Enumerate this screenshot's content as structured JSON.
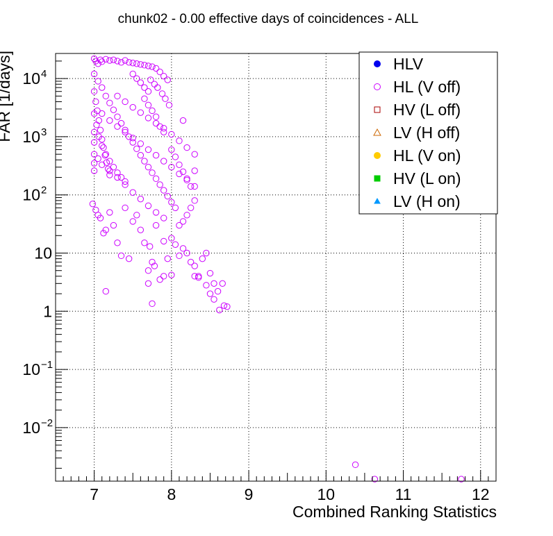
{
  "chart_data": {
    "type": "scatter",
    "title": "chunk02 - 0.00 effective days of coincidences - ALL",
    "xlabel": "Combined Ranking Statistics",
    "ylabel": "FAR [1/days]",
    "xlim": [
      6.5,
      12.2
    ],
    "ylim": [
      0.0012,
      27000
    ],
    "yscale": "log",
    "grid": true,
    "legend_position": "top-right",
    "x_ticks": [
      {
        "value": 7,
        "label": "7"
      },
      {
        "value": 8,
        "label": "8"
      },
      {
        "value": 9,
        "label": "9"
      },
      {
        "value": 10,
        "label": "10"
      },
      {
        "value": 11,
        "label": "11"
      },
      {
        "value": 12,
        "label": "12"
      }
    ],
    "y_ticks": [
      {
        "value": 0.01,
        "label": "10",
        "exp": "−2"
      },
      {
        "value": 0.1,
        "label": "10",
        "exp": "−1"
      },
      {
        "value": 1,
        "label": "1",
        "exp": ""
      },
      {
        "value": 10,
        "label": "10",
        "exp": ""
      },
      {
        "value": 100,
        "label": "10",
        "exp": "2"
      },
      {
        "value": 1000,
        "label": "10",
        "exp": "3"
      },
      {
        "value": 10000,
        "label": "10",
        "exp": "4"
      }
    ],
    "legend": [
      {
        "label": "HLV",
        "marker": "filled-circle",
        "color": "#0000ee"
      },
      {
        "label": "HL (V off)",
        "marker": "open-circle",
        "color": "#cc00ff"
      },
      {
        "label": "HV (L off)",
        "marker": "open-square",
        "color": "#aa0000"
      },
      {
        "label": "LV (H off)",
        "marker": "open-triangle",
        "color": "#cc6600"
      },
      {
        "label": "HL (V on)",
        "marker": "filled-circle",
        "color": "#ffcc00"
      },
      {
        "label": "HV (L on)",
        "marker": "filled-square",
        "color": "#00cc00"
      },
      {
        "label": "LV (H on)",
        "marker": "filled-triangle",
        "color": "#0099ff"
      }
    ],
    "series": [
      {
        "name": "HL (V off)",
        "color": "#cc00ff",
        "points": [
          [
            7.0,
            22000
          ],
          [
            7.02,
            20000
          ],
          [
            7.05,
            18000
          ],
          [
            7.08,
            21000
          ],
          [
            7.1,
            19500
          ],
          [
            7.15,
            21500
          ],
          [
            7.2,
            20500
          ],
          [
            7.25,
            21000
          ],
          [
            7.3,
            20000
          ],
          [
            7.35,
            19000
          ],
          [
            7.4,
            20500
          ],
          [
            7.45,
            19000
          ],
          [
            7.5,
            18500
          ],
          [
            7.55,
            18000
          ],
          [
            7.6,
            17500
          ],
          [
            7.65,
            17000
          ],
          [
            7.7,
            16500
          ],
          [
            7.75,
            16000
          ],
          [
            7.8,
            15000
          ],
          [
            7.85,
            13000
          ],
          [
            7.9,
            11000
          ],
          [
            7.95,
            9500
          ],
          [
            7.73,
            9500
          ],
          [
            7.78,
            8000
          ],
          [
            7.82,
            7000
          ],
          [
            7.88,
            5500
          ],
          [
            7.92,
            4500
          ],
          [
            7.97,
            3500
          ],
          [
            7.65,
            4500
          ],
          [
            7.7,
            3500
          ],
          [
            7.75,
            2800
          ],
          [
            7.8,
            2200
          ],
          [
            7.85,
            1500
          ],
          [
            7.9,
            1200
          ],
          [
            8.15,
            1900
          ],
          [
            7.0,
            12000
          ],
          [
            7.05,
            9000
          ],
          [
            7.1,
            7000
          ],
          [
            7.15,
            5000
          ],
          [
            7.2,
            3800
          ],
          [
            7.25,
            2900
          ],
          [
            7.3,
            2200
          ],
          [
            7.35,
            1700
          ],
          [
            7.4,
            1300
          ],
          [
            7.45,
            1000
          ],
          [
            7.5,
            800
          ],
          [
            7.55,
            620
          ],
          [
            7.6,
            480
          ],
          [
            7.65,
            380
          ],
          [
            7.7,
            300
          ],
          [
            7.75,
            240
          ],
          [
            7.8,
            190
          ],
          [
            7.85,
            150
          ],
          [
            7.9,
            120
          ],
          [
            7.95,
            95
          ],
          [
            8.0,
            75
          ],
          [
            8.05,
            60
          ],
          [
            7.0,
            6000
          ],
          [
            7.02,
            4000
          ],
          [
            7.04,
            2800
          ],
          [
            7.06,
            1900
          ],
          [
            7.08,
            1300
          ],
          [
            7.1,
            900
          ],
          [
            7.12,
            650
          ],
          [
            7.14,
            480
          ],
          [
            7.16,
            360
          ],
          [
            7.18,
            280
          ],
          [
            7.2,
            220
          ],
          [
            7.0,
            2500
          ],
          [
            7.03,
            1600
          ],
          [
            7.06,
            1000
          ],
          [
            7.1,
            700
          ],
          [
            7.15,
            500
          ],
          [
            7.2,
            380
          ],
          [
            7.25,
            300
          ],
          [
            7.3,
            240
          ],
          [
            7.35,
            200
          ],
          [
            7.4,
            170
          ],
          [
            7.0,
            1200
          ],
          [
            7.0,
            800
          ],
          [
            7.0,
            500
          ],
          [
            7.0,
            350
          ],
          [
            7.0,
            260
          ],
          [
            7.05,
            420
          ],
          [
            7.1,
            330
          ],
          [
            7.2,
            260
          ],
          [
            7.3,
            200
          ],
          [
            7.4,
            150
          ],
          [
            7.5,
            110
          ],
          [
            7.6,
            85
          ],
          [
            7.7,
            65
          ],
          [
            7.8,
            50
          ],
          [
            7.9,
            40
          ],
          [
            7.1,
            2500
          ],
          [
            7.2,
            1900
          ],
          [
            7.3,
            1500
          ],
          [
            7.4,
            1200
          ],
          [
            7.5,
            950
          ],
          [
            7.6,
            760
          ],
          [
            7.7,
            600
          ],
          [
            7.8,
            480
          ],
          [
            7.9,
            380
          ],
          [
            8.0,
            300
          ],
          [
            8.1,
            230
          ],
          [
            8.2,
            180
          ],
          [
            8.3,
            140
          ],
          [
            7.3,
            5000
          ],
          [
            7.4,
            4000
          ],
          [
            7.5,
            3200
          ],
          [
            7.6,
            2600
          ],
          [
            7.7,
            2100
          ],
          [
            7.8,
            1700
          ],
          [
            7.9,
            1400
          ],
          [
            8.0,
            1100
          ],
          [
            8.1,
            850
          ],
          [
            8.2,
            650
          ],
          [
            8.3,
            500
          ],
          [
            7.5,
            12000
          ],
          [
            7.55,
            10000
          ],
          [
            7.6,
            8500
          ],
          [
            7.65,
            7000
          ],
          [
            7.7,
            6000
          ],
          [
            8.0,
            600
          ],
          [
            8.05,
            450
          ],
          [
            8.1,
            330
          ],
          [
            8.15,
            250
          ],
          [
            8.2,
            190
          ],
          [
            8.25,
            140
          ],
          [
            8.3,
            80
          ],
          [
            8.25,
            60
          ],
          [
            8.2,
            45
          ],
          [
            8.15,
            35
          ],
          [
            8.1,
            30
          ],
          [
            8.3,
            260
          ],
          [
            6.98,
            70
          ],
          [
            7.02,
            55
          ],
          [
            7.05,
            45
          ],
          [
            7.08,
            40
          ],
          [
            7.12,
            22
          ],
          [
            7.15,
            25
          ],
          [
            7.2,
            50
          ],
          [
            7.25,
            30
          ],
          [
            7.3,
            15
          ],
          [
            7.35,
            9
          ],
          [
            7.4,
            60
          ],
          [
            7.45,
            8
          ],
          [
            7.5,
            35
          ],
          [
            7.55,
            45
          ],
          [
            7.6,
            25
          ],
          [
            7.65,
            15
          ],
          [
            7.7,
            5
          ],
          [
            7.72,
            13
          ],
          [
            7.75,
            7
          ],
          [
            7.78,
            6
          ],
          [
            7.8,
            30
          ],
          [
            7.85,
            3.5
          ],
          [
            7.9,
            16
          ],
          [
            7.95,
            8
          ],
          [
            8.0,
            18
          ],
          [
            8.05,
            14
          ],
          [
            8.1,
            9
          ],
          [
            8.15,
            12
          ],
          [
            8.2,
            10
          ],
          [
            8.25,
            7
          ],
          [
            8.3,
            6
          ],
          [
            8.35,
            4
          ],
          [
            8.4,
            8
          ],
          [
            8.45,
            10
          ],
          [
            8.5,
            4.5
          ],
          [
            8.55,
            3
          ],
          [
            8.6,
            2.2
          ],
          [
            8.62,
            1.05
          ],
          [
            8.66,
            3.0
          ],
          [
            8.68,
            1.25
          ],
          [
            8.72,
            1.2
          ],
          [
            7.15,
            2.2
          ],
          [
            7.7,
            3.0
          ],
          [
            7.75,
            1.35
          ],
          [
            7.9,
            4.0
          ],
          [
            8.0,
            4.2
          ],
          [
            8.3,
            4.0
          ],
          [
            8.35,
            3.8
          ],
          [
            8.45,
            2.8
          ],
          [
            8.5,
            2.0
          ],
          [
            8.55,
            1.6
          ],
          [
            10.38,
            0.0023
          ],
          [
            10.63,
            0.0013
          ],
          [
            11.75,
            0.0013
          ]
        ]
      }
    ]
  }
}
